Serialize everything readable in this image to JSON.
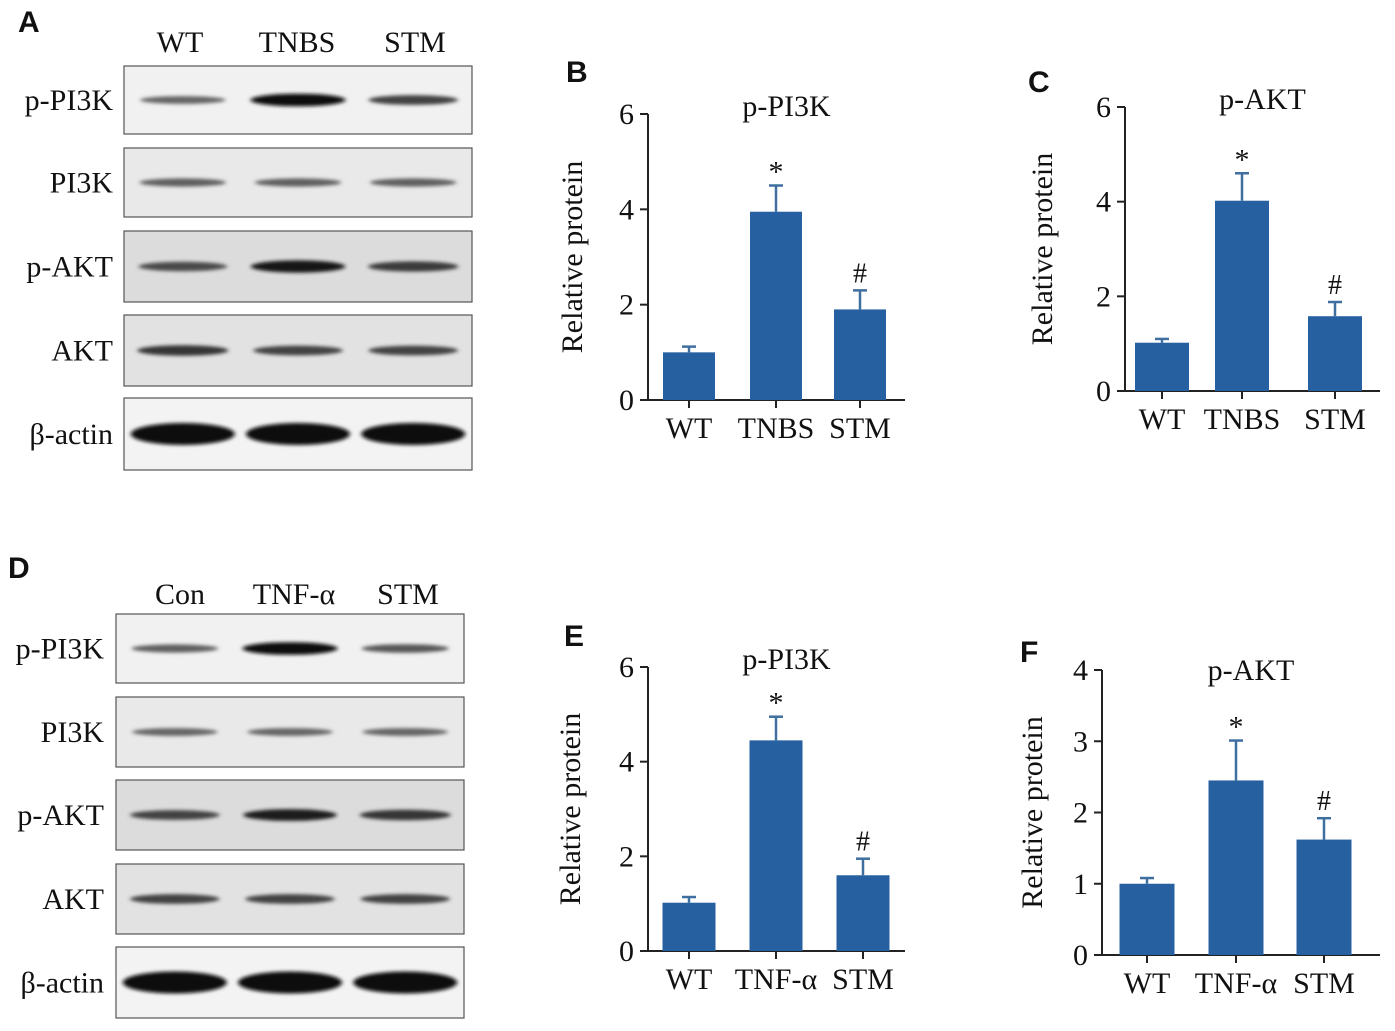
{
  "panel_letters": [
    "A",
    "B",
    "C",
    "D",
    "E",
    "F"
  ],
  "blots": [
    {
      "letter": "A",
      "lanes": [
        "WT",
        "TNBS",
        "STM"
      ],
      "rows": [
        {
          "label": "p-PI3K",
          "intensity": [
            0.35,
            0.95,
            0.6
          ]
        },
        {
          "label": "PI3K",
          "intensity": [
            0.4,
            0.4,
            0.4
          ]
        },
        {
          "label": "p-AKT",
          "intensity": [
            0.55,
            0.9,
            0.65
          ]
        },
        {
          "label": "AKT",
          "intensity": [
            0.7,
            0.6,
            0.6
          ]
        },
        {
          "label": "β-actin",
          "intensity": [
            1.0,
            1.0,
            1.0
          ]
        }
      ]
    },
    {
      "letter": "D",
      "lanes": [
        "Con",
        "TNF-α",
        "STM"
      ],
      "rows": [
        {
          "label": "p-PI3K",
          "intensity": [
            0.4,
            0.95,
            0.45
          ]
        },
        {
          "label": "PI3K",
          "intensity": [
            0.35,
            0.35,
            0.35
          ]
        },
        {
          "label": "p-AKT",
          "intensity": [
            0.6,
            0.85,
            0.7
          ]
        },
        {
          "label": "AKT",
          "intensity": [
            0.6,
            0.6,
            0.6
          ]
        },
        {
          "label": "β-actin",
          "intensity": [
            1.0,
            1.0,
            1.0
          ]
        }
      ]
    }
  ],
  "chart_data": [
    {
      "letter": "B",
      "type": "bar",
      "title": "p-PI3K",
      "ylabel": "Relative protein",
      "categories": [
        "WT",
        "TNBS",
        "STM"
      ],
      "values": [
        1.0,
        3.95,
        1.9
      ],
      "errors": [
        0.12,
        0.55,
        0.4
      ],
      "annotations": [
        "",
        "*",
        "#"
      ],
      "ylim": [
        0,
        6
      ],
      "yticks": [
        "0",
        "2",
        "4",
        "6"
      ],
      "bar_color": "#2760a0"
    },
    {
      "letter": "C",
      "type": "bar",
      "title": "p-AKT",
      "ylabel": "Relative protein",
      "categories": [
        "WT",
        "TNBS",
        "STM"
      ],
      "values": [
        1.02,
        4.02,
        1.58
      ],
      "errors": [
        0.08,
        0.58,
        0.3
      ],
      "annotations": [
        "",
        "*",
        "#"
      ],
      "ylim": [
        0,
        6
      ],
      "yticks": [
        "0",
        "2",
        "4",
        "6"
      ],
      "bar_color": "#2760a0"
    },
    {
      "letter": "E",
      "type": "bar",
      "title": "p-PI3K",
      "ylabel": "Relative protein",
      "categories": [
        "WT",
        "TNF-α",
        "STM"
      ],
      "values": [
        1.02,
        4.45,
        1.6
      ],
      "errors": [
        0.12,
        0.5,
        0.35
      ],
      "annotations": [
        "",
        "*",
        "#"
      ],
      "ylim": [
        0,
        6
      ],
      "yticks": [
        "0",
        "2",
        "4",
        "6"
      ],
      "bar_color": "#2760a0"
    },
    {
      "letter": "F",
      "type": "bar",
      "title": "p-AKT",
      "ylabel": "Relative protein",
      "categories": [
        "WT",
        "TNF-α",
        "STM"
      ],
      "values": [
        1.0,
        2.45,
        1.62
      ],
      "errors": [
        0.08,
        0.56,
        0.3
      ],
      "annotations": [
        "",
        "*",
        "#"
      ],
      "ylim": [
        0,
        4
      ],
      "yticks": [
        "0",
        "1",
        "2",
        "3",
        "4"
      ],
      "bar_color": "#2760a0"
    }
  ]
}
